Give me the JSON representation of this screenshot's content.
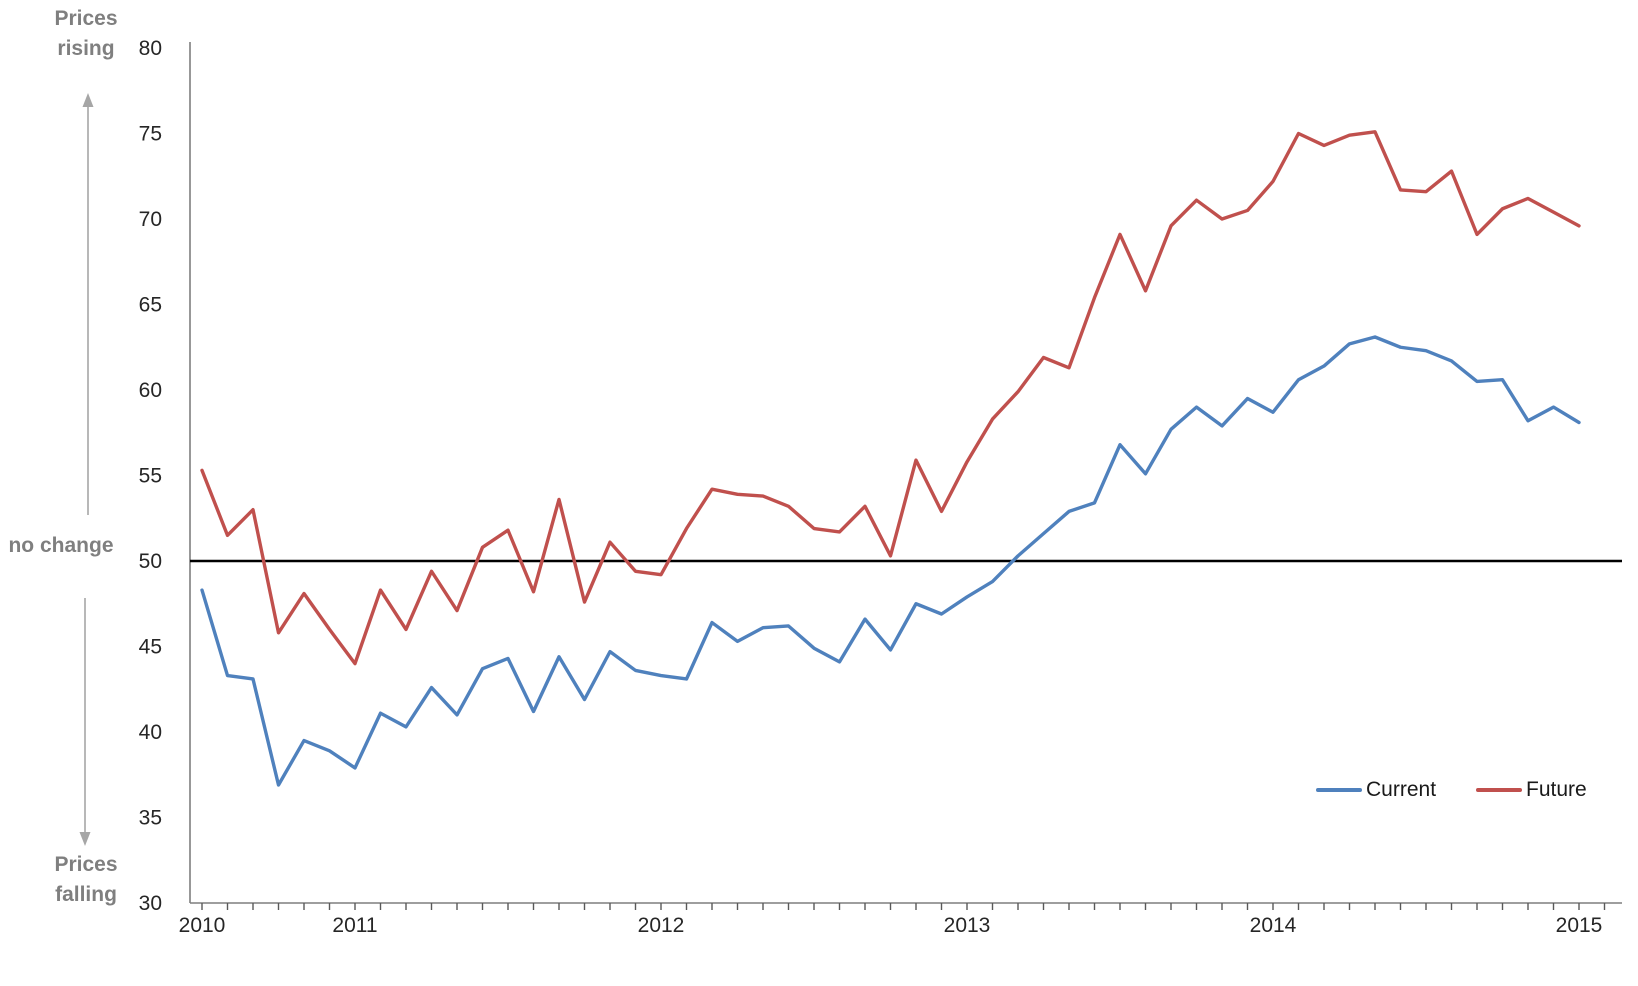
{
  "page": {
    "background": "#ffffff"
  },
  "annotations": {
    "prices_rising": "Prices rising",
    "no_change": "no change",
    "prices_falling": "Prices falling"
  },
  "legend": {
    "position": "bottom-right",
    "items": [
      {
        "label": "Current",
        "color": "#4F81BD"
      },
      {
        "label": "Future",
        "color": "#C0504D"
      }
    ]
  },
  "chart_data": {
    "type": "line",
    "title": "",
    "xlabel": "",
    "ylabel": "",
    "ylim": [
      30,
      80
    ],
    "y_ticks": [
      30,
      35,
      40,
      45,
      50,
      55,
      60,
      65,
      70,
      75,
      80
    ],
    "grid": false,
    "legend_position": "bottom-right",
    "axis_color": "#7f7f7f",
    "tick_color": "#595959",
    "label_color": "#262626",
    "annotation_color": "#7f7f7f",
    "arrow_color": "#a6a6a6",
    "reference_line": {
      "value": 50,
      "color": "#000000",
      "label": "no change"
    },
    "x_year_labels": [
      {
        "label": "2010",
        "index": 0
      },
      {
        "label": "2011",
        "index": 6
      },
      {
        "label": "2012",
        "index": 18
      },
      {
        "label": "2013",
        "index": 30
      },
      {
        "label": "2014",
        "index": 42
      },
      {
        "label": "2015",
        "index": 54
      }
    ],
    "categories": [
      "2010-01",
      "2010-03",
      "2010-05",
      "2010-07",
      "2010-09",
      "2010-11",
      "2011-01",
      "2011-02",
      "2011-03",
      "2011-04",
      "2011-05",
      "2011-06",
      "2011-07",
      "2011-08",
      "2011-09",
      "2011-10",
      "2011-11",
      "2011-12",
      "2012-01",
      "2012-02",
      "2012-03",
      "2012-04",
      "2012-05",
      "2012-06",
      "2012-07",
      "2012-08",
      "2012-09",
      "2012-10",
      "2012-11",
      "2012-12",
      "2013-01",
      "2013-02",
      "2013-03",
      "2013-04",
      "2013-05",
      "2013-06",
      "2013-07",
      "2013-08",
      "2013-09",
      "2013-10",
      "2013-11",
      "2013-12",
      "2014-01",
      "2014-02",
      "2014-03",
      "2014-04",
      "2014-05",
      "2014-06",
      "2014-07",
      "2014-08",
      "2014-09",
      "2014-10",
      "2014-11",
      "2014-12",
      "2015-01"
    ],
    "series": [
      {
        "name": "Current",
        "color": "#4F81BD",
        "values": [
          48.3,
          43.3,
          43.1,
          36.9,
          39.5,
          38.9,
          37.9,
          41.1,
          40.3,
          42.6,
          41.0,
          43.7,
          44.3,
          41.2,
          44.4,
          41.9,
          44.7,
          43.6,
          43.3,
          43.1,
          46.4,
          45.3,
          46.1,
          46.2,
          44.9,
          44.1,
          46.6,
          44.8,
          47.5,
          46.9,
          47.9,
          48.8,
          50.3,
          51.6,
          52.9,
          53.4,
          56.8,
          55.1,
          57.7,
          59.0,
          57.9,
          59.5,
          58.7,
          60.6,
          61.4,
          62.7,
          63.1,
          62.5,
          62.3,
          61.7,
          60.5,
          60.6,
          58.2,
          59.0,
          58.1
        ]
      },
      {
        "name": "Future",
        "color": "#C0504D",
        "values": [
          55.3,
          51.5,
          53.0,
          45.8,
          48.1,
          46.0,
          44.0,
          48.3,
          46.0,
          49.4,
          47.1,
          50.8,
          51.8,
          48.2,
          53.6,
          47.6,
          51.1,
          49.4,
          49.2,
          51.9,
          54.2,
          53.9,
          53.8,
          53.2,
          51.9,
          51.7,
          53.2,
          50.3,
          55.9,
          52.9,
          55.8,
          58.3,
          59.9,
          61.9,
          61.3,
          65.4,
          69.1,
          65.8,
          69.6,
          71.1,
          70.0,
          70.5,
          72.2,
          75.0,
          74.3,
          74.9,
          75.1,
          71.7,
          71.6,
          72.8,
          69.1,
          70.6,
          71.2,
          70.4,
          69.6
        ]
      }
    ]
  }
}
